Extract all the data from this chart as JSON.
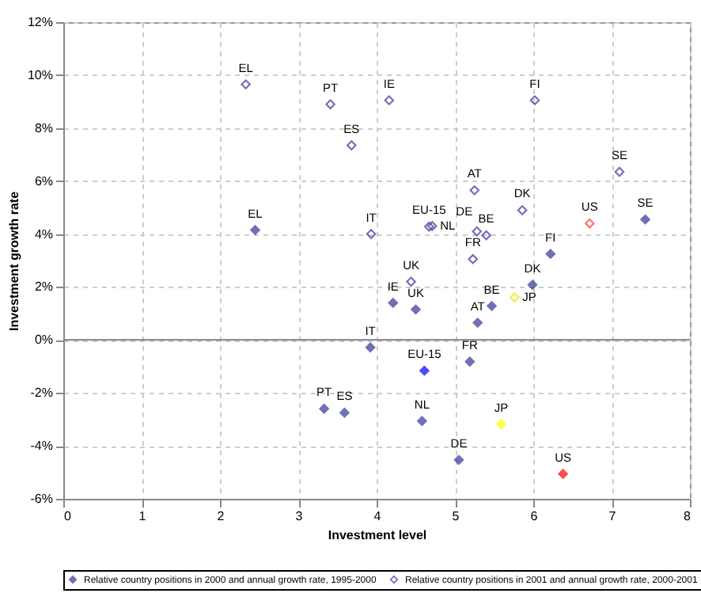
{
  "chart_data": {
    "type": "scatter",
    "xlabel": "Investment level",
    "ylabel": "Investment growth rate",
    "xlim": [
      0,
      8
    ],
    "ylim": [
      -6,
      12
    ],
    "xticks": [
      0,
      1,
      2,
      3,
      4,
      5,
      6,
      7,
      8
    ],
    "yticks": [
      {
        "value": -6,
        "label": "-6%"
      },
      {
        "value": -4,
        "label": "-4%"
      },
      {
        "value": -2,
        "label": "-2%"
      },
      {
        "value": 0,
        "label": "0%"
      },
      {
        "value": 2,
        "label": "2%"
      },
      {
        "value": 4,
        "label": "4%"
      },
      {
        "value": 6,
        "label": "6%"
      },
      {
        "value": 8,
        "label": "8%"
      },
      {
        "value": 10,
        "label": "10%"
      },
      {
        "value": 12,
        "label": "12%"
      }
    ],
    "grid": true,
    "legend": "bottom",
    "marker": "diamond",
    "ref_lines": [
      {
        "axis": "y",
        "value": 0,
        "color": "#808080"
      }
    ],
    "series": [
      {
        "name": "Relative country positions in 2000 and annual growth rate, 1995-2000",
        "color": "#333399",
        "x": [
          2.45,
          3.33,
          3.59,
          3.92,
          4.21,
          4.5,
          4.61,
          4.58,
          5.19,
          5.29,
          5.47,
          5.05,
          5.59,
          5.99,
          6.22,
          6.38,
          7.43
        ],
        "values": [
          4.15,
          -2.6,
          -2.75,
          -0.28,
          1.4,
          1.15,
          -1.16,
          -3.06,
          -0.82,
          0.65,
          1.28,
          -4.53,
          -3.18,
          2.08,
          3.25,
          -5.06,
          4.55
        ],
        "colors": [
          "#333399",
          "#333399",
          "#333399",
          "#333399",
          "#333399",
          "#333399",
          "#0000ff",
          "#333399",
          "#333399",
          "#333399",
          "#333399",
          "#333399",
          "#ffff00",
          "#333399",
          "#333399",
          "#ff0000",
          "#333399"
        ]
      },
      {
        "name": "Relative country positions in 2001 and annual growth rate, 2000-2001",
        "color": "#333399",
        "x": [
          2.33,
          3.41,
          3.68,
          3.93,
          4.16,
          4.44,
          4.67,
          4.71,
          5.23,
          5.25,
          5.4,
          5.28,
          5.76,
          5.86,
          6.02,
          6.72,
          7.1
        ],
        "values": [
          9.65,
          8.9,
          7.35,
          4.0,
          9.05,
          2.2,
          4.28,
          4.3,
          3.05,
          5.65,
          3.95,
          4.1,
          1.6,
          4.9,
          9.05,
          4.4,
          6.35
        ],
        "colors": [
          "#333399",
          "#333399",
          "#333399",
          "#333399",
          "#333399",
          "#333399",
          "#333399",
          "#333399",
          "#333399",
          "#333399",
          "#333399",
          "#333399",
          "#e6e600",
          "#333399",
          "#333399",
          "#ff3333",
          "#333399"
        ]
      }
    ],
    "annotations": [
      {
        "text": "EL",
        "x": 2.45,
        "y": 4.15
      },
      {
        "text": "PT",
        "x": 3.33,
        "y": -2.6
      },
      {
        "text": "ES",
        "x": 3.59,
        "y": -2.75
      },
      {
        "text": "IT",
        "x": 3.92,
        "y": -0.28
      },
      {
        "text": "IE",
        "x": 4.21,
        "y": 1.4
      },
      {
        "text": "UK",
        "x": 4.5,
        "y": 1.15
      },
      {
        "text": "EU-15",
        "x": 4.61,
        "y": -1.16
      },
      {
        "text": "NL",
        "x": 4.58,
        "y": -3.06
      },
      {
        "text": "FR",
        "x": 5.19,
        "y": -0.82
      },
      {
        "text": "AT",
        "x": 5.29,
        "y": 0.65
      },
      {
        "text": "BE",
        "x": 5.47,
        "y": 1.28
      },
      {
        "text": "DE",
        "x": 5.05,
        "y": -4.53
      },
      {
        "text": "JP",
        "x": 5.59,
        "y": -3.18
      },
      {
        "text": "DK",
        "x": 5.99,
        "y": 2.08
      },
      {
        "text": "FI",
        "x": 6.22,
        "y": 3.25
      },
      {
        "text": "US",
        "x": 6.38,
        "y": -5.06
      },
      {
        "text": "SE",
        "x": 7.43,
        "y": 4.55
      },
      {
        "text": "EL",
        "x": 2.33,
        "y": 9.65
      },
      {
        "text": "PT",
        "x": 3.41,
        "y": 8.9
      },
      {
        "text": "ES",
        "x": 3.68,
        "y": 7.35
      },
      {
        "text": "IT",
        "x": 3.93,
        "y": 4.0
      },
      {
        "text": "IE",
        "x": 4.16,
        "y": 9.05
      },
      {
        "text": "UK",
        "x": 4.44,
        "y": 2.2
      },
      {
        "text": "EU-15",
        "x": 4.67,
        "y": 4.28
      },
      {
        "text": "NL",
        "x": 4.71,
        "y": 4.3
      },
      {
        "text": "FR",
        "x": 5.23,
        "y": 3.05
      },
      {
        "text": "AT",
        "x": 5.25,
        "y": 5.65
      },
      {
        "text": "BE",
        "x": 5.4,
        "y": 3.95
      },
      {
        "text": "DE",
        "x": 5.28,
        "y": 4.1
      },
      {
        "text": "JP",
        "x": 5.76,
        "y": 1.6
      },
      {
        "text": "DK",
        "x": 5.86,
        "y": 4.9
      },
      {
        "text": "FI",
        "x": 6.02,
        "y": 9.05
      },
      {
        "text": "US",
        "x": 6.72,
        "y": 4.4
      },
      {
        "text": "SE",
        "x": 7.1,
        "y": 6.35
      }
    ]
  }
}
